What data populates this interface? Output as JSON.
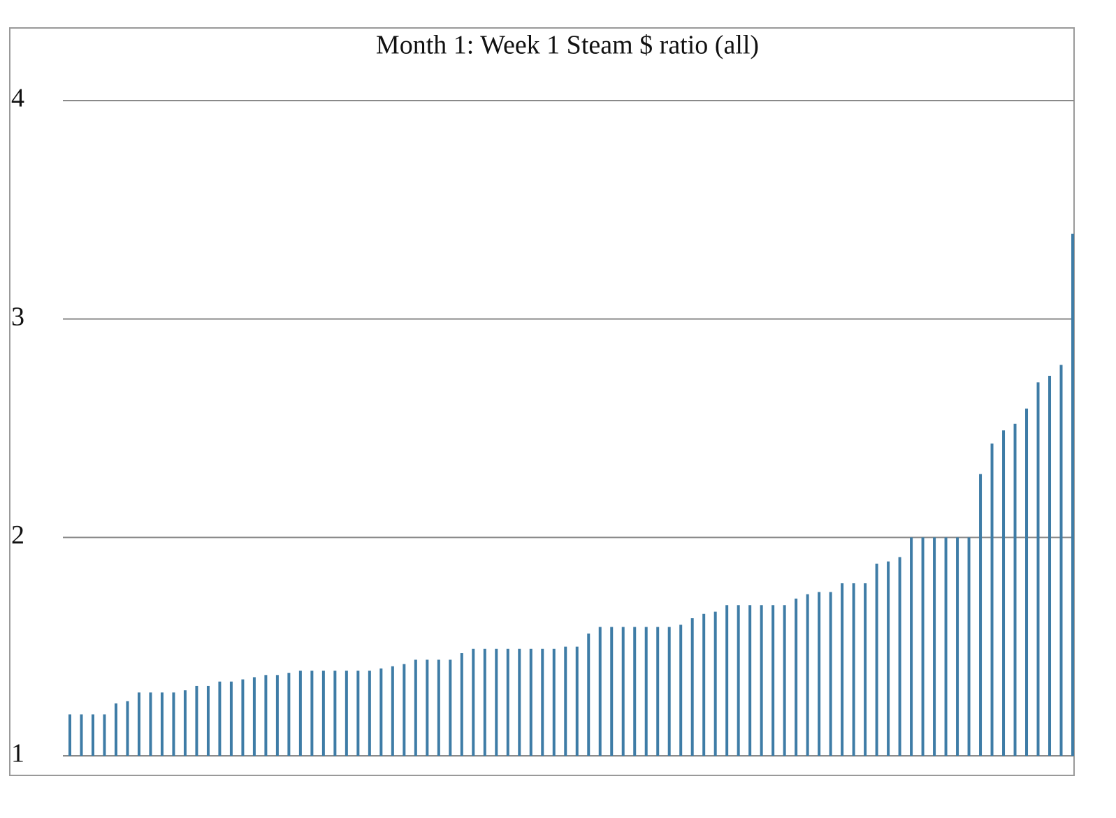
{
  "chart_data": {
    "type": "bar",
    "title": "Month 1: Week 1 Steam $ ratio (all)",
    "values": [
      1.19,
      1.19,
      1.19,
      1.19,
      1.24,
      1.25,
      1.29,
      1.29,
      1.29,
      1.29,
      1.3,
      1.32,
      1.32,
      1.34,
      1.34,
      1.35,
      1.36,
      1.37,
      1.37,
      1.38,
      1.39,
      1.39,
      1.39,
      1.39,
      1.39,
      1.39,
      1.39,
      1.4,
      1.41,
      1.42,
      1.44,
      1.44,
      1.44,
      1.44,
      1.47,
      1.49,
      1.49,
      1.49,
      1.49,
      1.49,
      1.49,
      1.49,
      1.49,
      1.5,
      1.5,
      1.56,
      1.59,
      1.59,
      1.59,
      1.59,
      1.59,
      1.59,
      1.59,
      1.6,
      1.63,
      1.65,
      1.66,
      1.69,
      1.69,
      1.69,
      1.69,
      1.69,
      1.69,
      1.72,
      1.74,
      1.75,
      1.75,
      1.79,
      1.79,
      1.79,
      1.88,
      1.89,
      1.91,
      2,
      2,
      2,
      2,
      2,
      2,
      2.29,
      2.43,
      2.49,
      2.52,
      2.59,
      2.71,
      2.74,
      2.79,
      3.39
    ],
    "color": "#3e7ca6",
    "ylim": [
      1,
      4
    ],
    "yticks": [
      1,
      2,
      3,
      4
    ],
    "grid": true
  }
}
